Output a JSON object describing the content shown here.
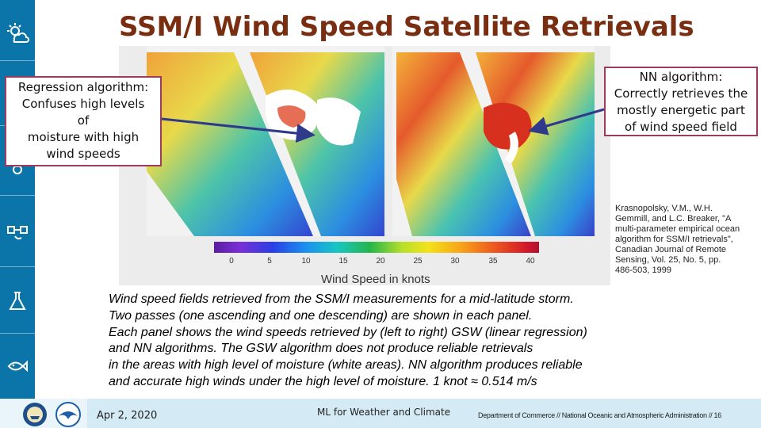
{
  "slide": {
    "title": "SSM/I Wind Speed Satellite Retrievals",
    "callout_left": [
      "Regression algorithm:",
      "Confuses high levels",
      "of",
      "moisture with high",
      "wind speeds"
    ],
    "callout_right": [
      "NN algorithm:",
      "Correctly retrieves the",
      "mostly energetic part",
      "of wind speed field"
    ],
    "citation": [
      "Krasnopolsky, V.M., W.H.",
      "Gemmill, and L.C. Breaker, \"A",
      "multi-parameter empirical ocean",
      "algorithm for SSM/I retrievals\",",
      "Canadian Journal of Remote",
      "Sensing, Vol. 25, No. 5, pp.",
      "486-503, 1999"
    ],
    "caption": [
      "Wind speed fields retrieved from the SSM/I measurements for a mid-latitude storm.",
      "Two passes (one ascending and one descending) are shown in each panel.",
      "Each panel shows the wind speeds retrieved by (left to right) GSW (linear regression)",
      "and NN algorithms. The GSW algorithm does not produce reliable retrievals",
      "in the areas with high level of moisture (white areas). NN algorithm produces reliable",
      "and accurate high winds under the high level of moisture. 1 knot ≈ 0.514 m/s"
    ]
  },
  "colorbar": {
    "label": "Wind Speed in knots",
    "ticks": [
      "0",
      "5",
      "10",
      "15",
      "20",
      "25",
      "30",
      "35",
      "40"
    ]
  },
  "sidebar": {
    "icons": [
      "sun-cloud-icon",
      "thermometer-icon",
      "satellite-icon",
      "flask-icon",
      "fish-icon"
    ]
  },
  "footer": {
    "date": "Apr 2, 2020",
    "center": "ML for Weather and Climate",
    "right": "Department of Commerce // National Oceanic and Atmospheric Administration // 16",
    "colors": {
      "bar": "#d4ebf5",
      "sidebar": "#0b74a8"
    }
  }
}
